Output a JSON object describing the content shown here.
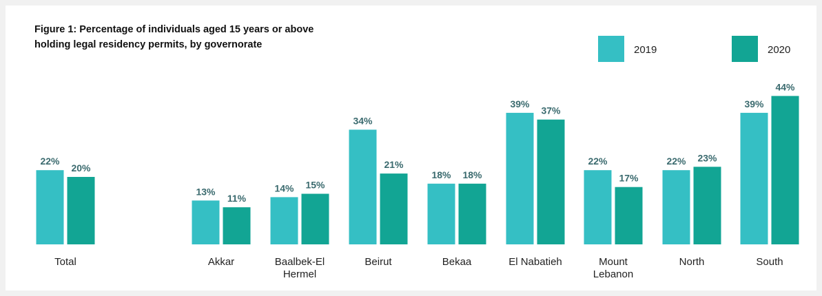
{
  "chart_data": {
    "type": "bar",
    "title": [
      "Figure 1: Percentage of individuals aged 15 years or above",
      "holding legal residency permits, by governorate"
    ],
    "categories": [
      "Total",
      "Akkar",
      "Baalbek-El Hermel",
      "Beirut",
      "Bekaa",
      "El Nabatieh",
      "Mount Lebanon",
      "North",
      "South"
    ],
    "series": [
      {
        "name": "2019",
        "color": "#35bfc4",
        "values": [
          22,
          13,
          14,
          34,
          18,
          39,
          22,
          22,
          39
        ],
        "value_labels": [
          "22%",
          "13%",
          "14%",
          "34%",
          "18%",
          "39%",
          "22%",
          "22%",
          "39%"
        ]
      },
      {
        "name": "2020",
        "color": "#12a594",
        "values": [
          20,
          11,
          15,
          21,
          18,
          37,
          17,
          23,
          44
        ],
        "value_labels": [
          "20%",
          "11%",
          "15%",
          "21%",
          "18%",
          "37%",
          "17%",
          "23%",
          "44%"
        ]
      }
    ]
  }
}
